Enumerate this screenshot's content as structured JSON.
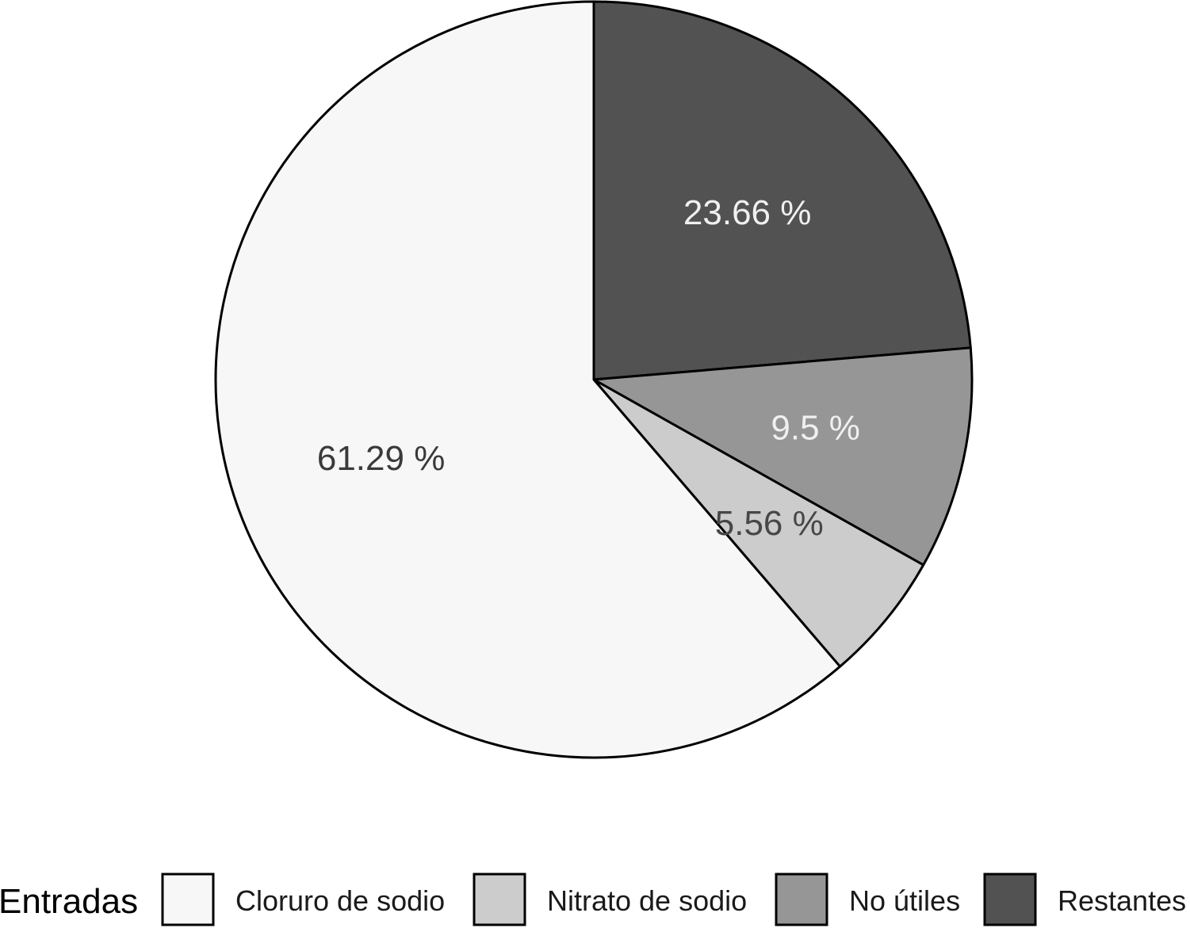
{
  "chart_data": {
    "type": "pie",
    "title": "",
    "legend": {
      "title": "Entradas",
      "position": "bottom"
    },
    "start_angle_deg": 0,
    "direction": "clockwise",
    "slices": [
      {
        "name": "Restantes",
        "value": 23.66,
        "label": "23.66 %",
        "color": "#525252",
        "label_color": "#f0f0f0"
      },
      {
        "name": "No útiles",
        "value": 9.5,
        "label": "9.5 %",
        "color": "#969696",
        "label_color": "#f0f0f0"
      },
      {
        "name": "Nitrato de sodio",
        "value": 5.56,
        "label": "5.56 %",
        "color": "#cccccc",
        "label_color": "#474747"
      },
      {
        "name": "Cloruro de sodio",
        "value": 61.29,
        "label": "61.29 %",
        "color": "#f7f7f7",
        "label_color": "#3a3a3a"
      }
    ],
    "legend_order": [
      "Cloruro de sodio",
      "Nitrato de sodio",
      "No útiles",
      "Restantes"
    ]
  }
}
